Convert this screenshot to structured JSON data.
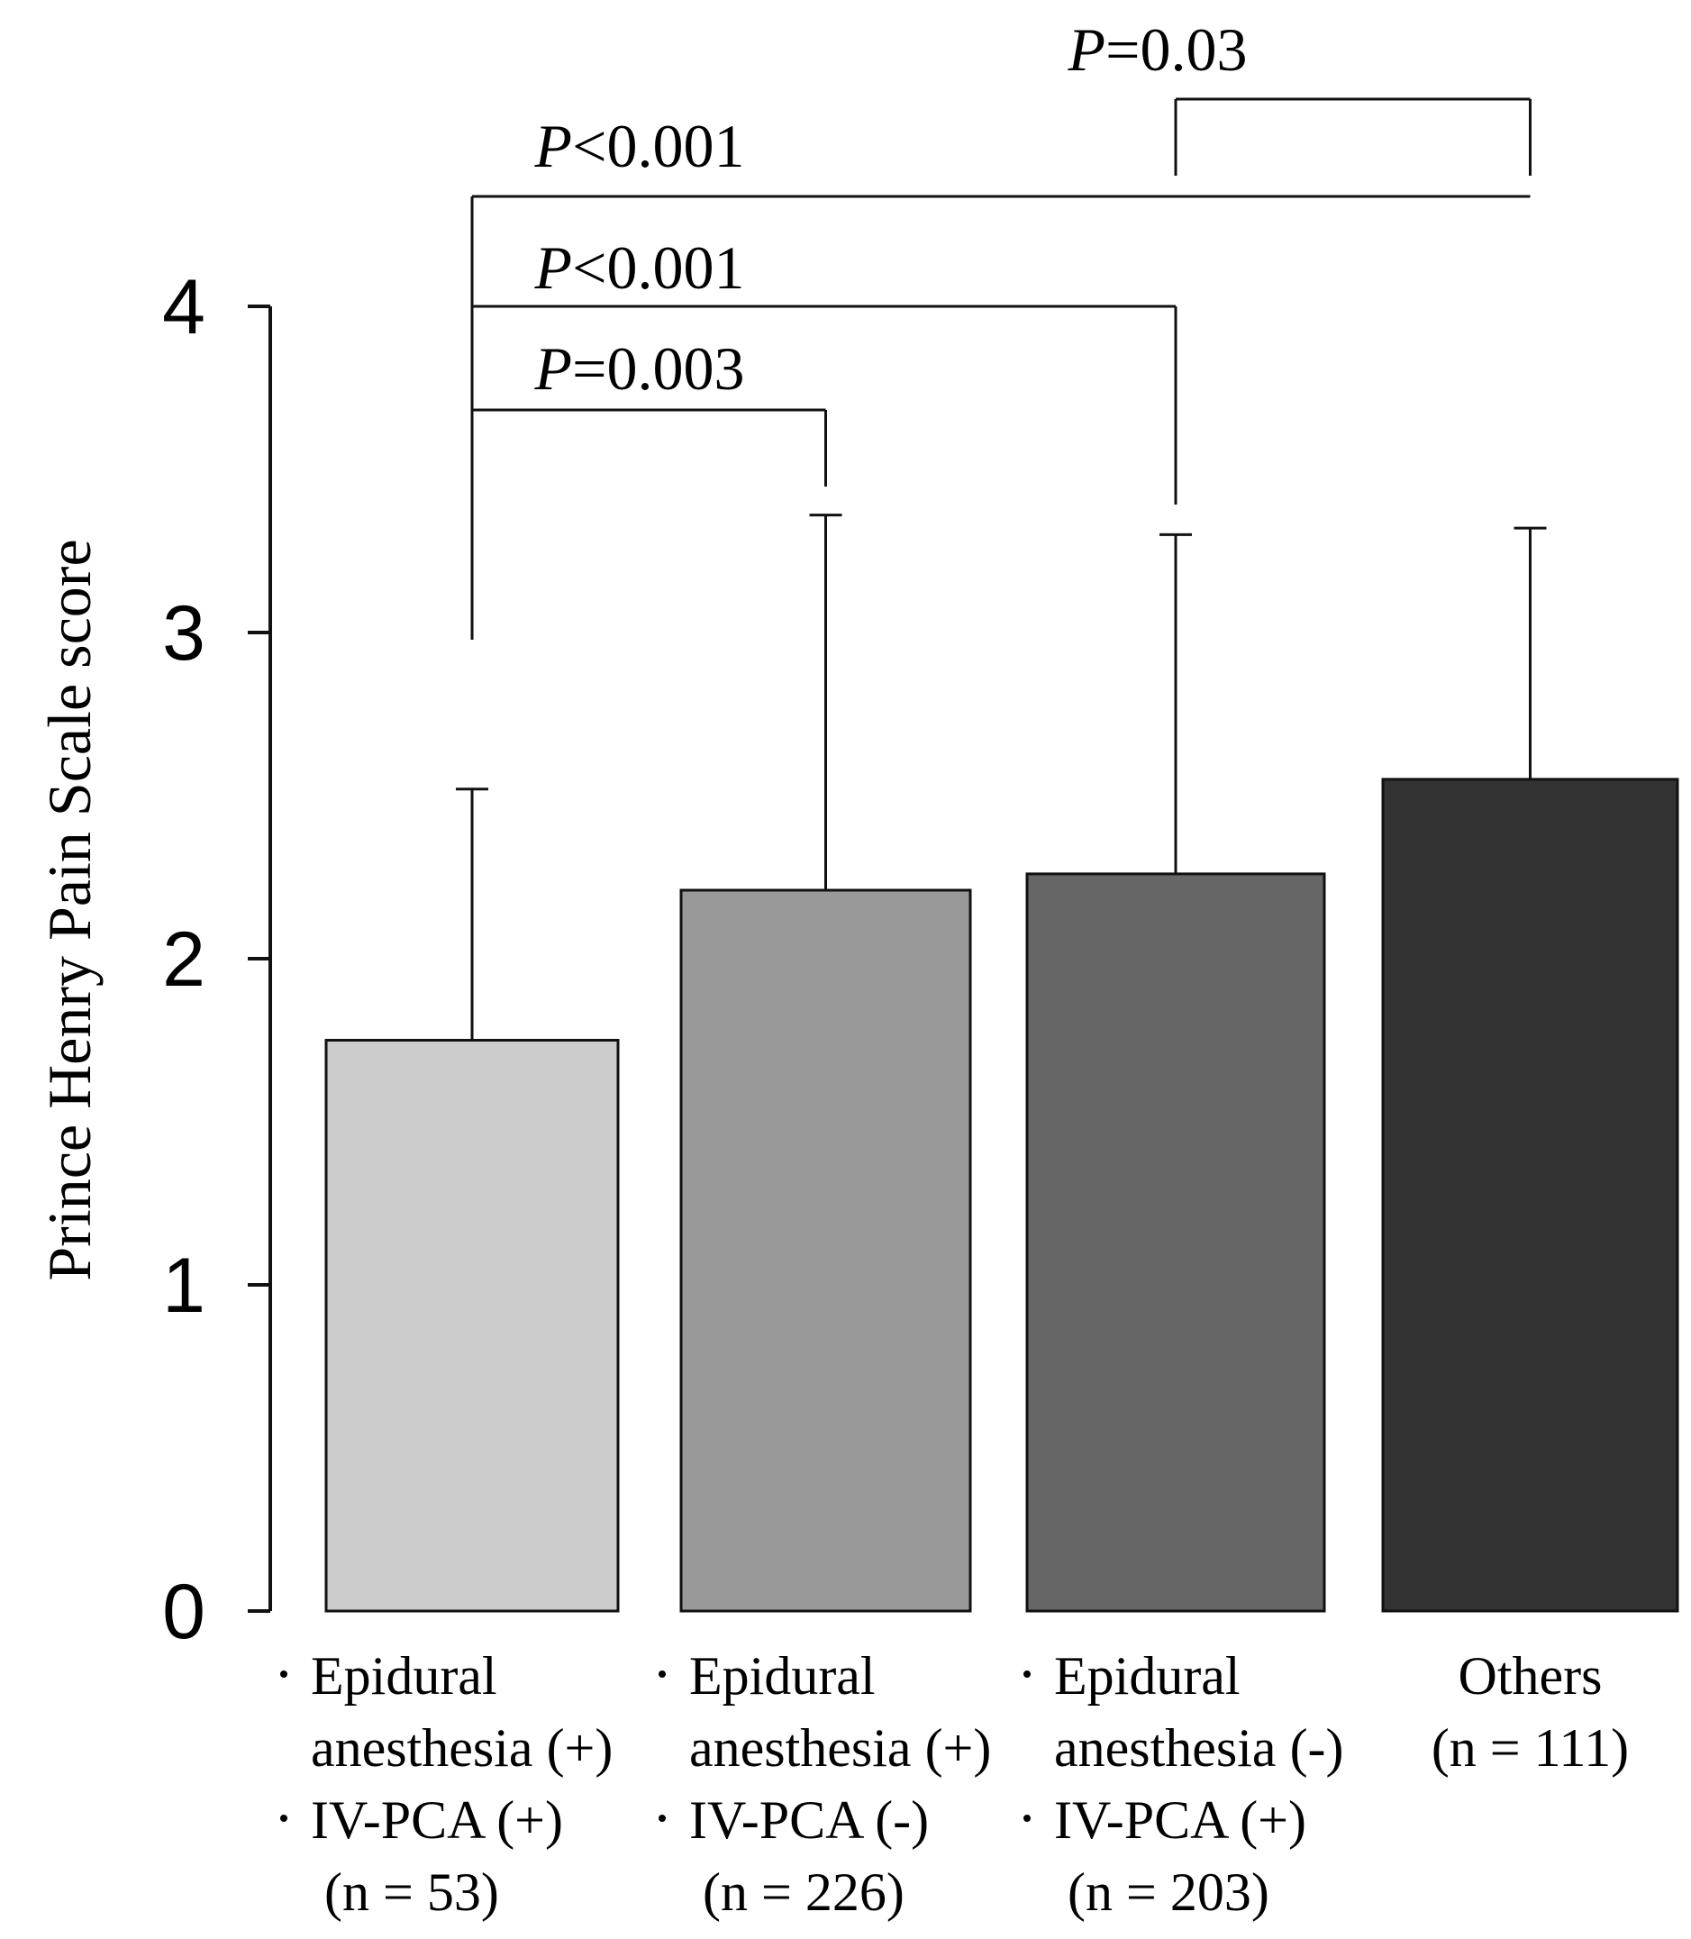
{
  "chart_data": {
    "type": "bar",
    "title": "",
    "xlabel": "",
    "ylabel": "Prince Henry Pain Scale score",
    "ylim": [
      0,
      4
    ],
    "yticks": [
      0,
      1,
      2,
      3,
      4
    ],
    "grid": false,
    "categories": [
      {
        "lines": [
          "Epidural",
          "anesthesia (+)",
          "IV-PCA (+)",
          "(n = 53)"
        ],
        "bullets": [
          true,
          false,
          true,
          false
        ],
        "fill": "#cccccc"
      },
      {
        "lines": [
          "Epidural",
          "anesthesia (+)",
          "IV-PCA (-)",
          "(n = 226)"
        ],
        "bullets": [
          true,
          false,
          true,
          false
        ],
        "fill": "#999999"
      },
      {
        "lines": [
          "Epidural",
          "anesthesia (-)",
          "IV-PCA (+)",
          "(n = 203)"
        ],
        "bullets": [
          true,
          false,
          true,
          false
        ],
        "fill": "#666666"
      },
      {
        "lines": [
          "Others",
          "(n = 111)"
        ],
        "bullets": [
          false,
          false
        ],
        "fill": "#333333"
      }
    ],
    "values": [
      1.75,
      2.21,
      2.26,
      2.55
    ],
    "errors": [
      0.77,
      1.15,
      1.04,
      0.77
    ],
    "comparisons": [
      {
        "from": 2,
        "to": 3,
        "label": "P=0.03"
      },
      {
        "from": 0,
        "to": 3,
        "label": "P<0.001"
      },
      {
        "from": 0,
        "to": 2,
        "label": "P<0.001"
      },
      {
        "from": 0,
        "to": 1,
        "label": "P=0.003"
      }
    ]
  }
}
